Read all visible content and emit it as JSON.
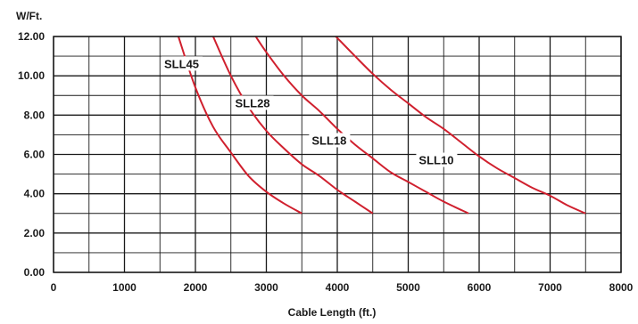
{
  "chart_data": {
    "type": "line",
    "title": "",
    "xlabel": "Cable Length (ft.)",
    "ylabel": "W/Ft.",
    "xlim": [
      0,
      8000
    ],
    "ylim": [
      0,
      12
    ],
    "x_ticks": [
      "0",
      "1000",
      "2000",
      "3000",
      "4000",
      "5000",
      "6000",
      "7000",
      "8000"
    ],
    "y_ticks": [
      "0.00",
      "2.00",
      "4.00",
      "6.00",
      "8.00",
      "10.00",
      "12.00"
    ],
    "grid": true,
    "line_color": "#d0202e",
    "series": [
      {
        "name": "SLL45",
        "x": [
          1760,
          2000,
          2250,
          2500,
          2750,
          3000,
          3250,
          3500
        ],
        "y": [
          12.0,
          9.4,
          7.4,
          6.1,
          4.9,
          4.1,
          3.5,
          3.0
        ]
      },
      {
        "name": "SLL28",
        "x": [
          2250,
          2500,
          2750,
          3000,
          3250,
          3500,
          3750,
          4000,
          4250,
          4500
        ],
        "y": [
          12.0,
          10.0,
          8.4,
          7.2,
          6.3,
          5.5,
          4.9,
          4.2,
          3.6,
          3.0
        ]
      },
      {
        "name": "SLL18",
        "x": [
          2850,
          3000,
          3250,
          3500,
          3750,
          4000,
          4250,
          4500,
          4750,
          5000,
          5250,
          5500,
          5850
        ],
        "y": [
          12.0,
          11.2,
          10.0,
          9.0,
          8.2,
          7.3,
          6.5,
          5.8,
          5.1,
          4.6,
          4.1,
          3.6,
          3.0
        ]
      },
      {
        "name": "SLL10",
        "x": [
          3980,
          4250,
          4500,
          4750,
          5000,
          5250,
          5500,
          5750,
          6000,
          6250,
          6500,
          6750,
          7000,
          7250,
          7500
        ],
        "y": [
          12.0,
          11.0,
          10.1,
          9.3,
          8.6,
          7.9,
          7.3,
          6.6,
          5.9,
          5.3,
          4.8,
          4.3,
          3.9,
          3.4,
          3.0
        ]
      }
    ]
  }
}
